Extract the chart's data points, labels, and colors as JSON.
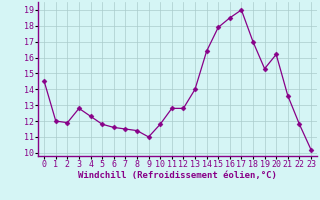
{
  "x": [
    0,
    1,
    2,
    3,
    4,
    5,
    6,
    7,
    8,
    9,
    10,
    11,
    12,
    13,
    14,
    15,
    16,
    17,
    18,
    19,
    20,
    21,
    22,
    23
  ],
  "y": [
    14.5,
    12.0,
    11.9,
    12.8,
    12.3,
    11.8,
    11.6,
    11.5,
    11.4,
    11.0,
    11.8,
    12.8,
    12.8,
    14.0,
    16.4,
    17.9,
    18.5,
    19.0,
    17.0,
    15.3,
    16.2,
    13.6,
    11.8,
    10.2
  ],
  "line_color": "#880088",
  "marker": "D",
  "marker_size": 2.5,
  "bg_color": "#d5f5f5",
  "grid_color": "#aacccc",
  "spine_color": "#880088",
  "xlabel": "Windchill (Refroidissement éolien,°C)",
  "xlabel_fontsize": 6.5,
  "tick_fontsize": 6.0,
  "ylim": [
    9.8,
    19.5
  ],
  "yticks": [
    10,
    11,
    12,
    13,
    14,
    15,
    16,
    17,
    18,
    19
  ],
  "xlim": [
    -0.5,
    23.5
  ],
  "xticks": [
    0,
    1,
    2,
    3,
    4,
    5,
    6,
    7,
    8,
    9,
    10,
    11,
    12,
    13,
    14,
    15,
    16,
    17,
    18,
    19,
    20,
    21,
    22,
    23
  ]
}
